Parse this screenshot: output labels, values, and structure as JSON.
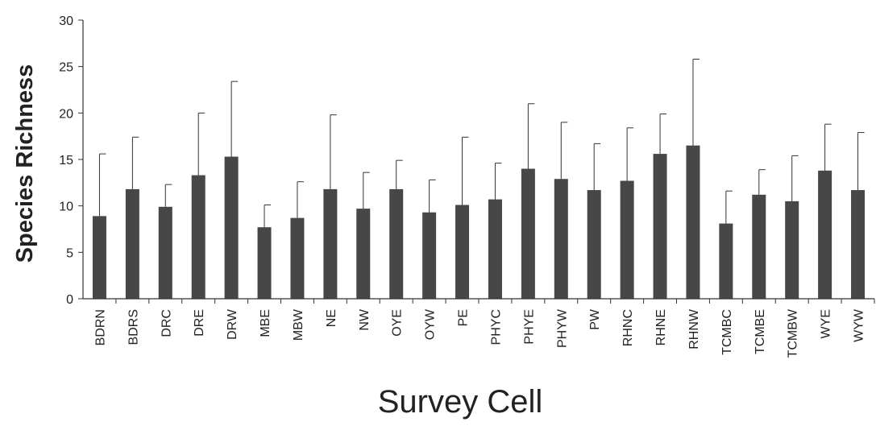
{
  "chart_data": {
    "type": "bar",
    "xlabel": "Survey Cell",
    "ylabel": "Species Richness",
    "ylim": [
      0,
      30
    ],
    "yticks": [
      0,
      5,
      10,
      15,
      20,
      25,
      30
    ],
    "categories": [
      "BDRN",
      "BDRS",
      "DRC",
      "DRE",
      "DRW",
      "MBE",
      "MBW",
      "NE",
      "NW",
      "OYE",
      "OYW",
      "PE",
      "PHYC",
      "PHYE",
      "PHYW",
      "PW",
      "RHNC",
      "RHNE",
      "RHNW",
      "TCMBC",
      "TCMBE",
      "TCMBW",
      "WYE",
      "WYW"
    ],
    "values": [
      8.9,
      11.8,
      9.9,
      13.3,
      15.3,
      7.7,
      8.7,
      11.8,
      9.7,
      11.8,
      9.3,
      10.1,
      10.7,
      14.0,
      12.9,
      11.7,
      12.7,
      15.6,
      16.5,
      8.1,
      11.2,
      10.5,
      13.8,
      11.7
    ],
    "error_upper": [
      15.6,
      17.4,
      12.3,
      20.0,
      23.4,
      10.1,
      12.6,
      19.8,
      13.6,
      14.9,
      12.8,
      17.4,
      14.6,
      21.0,
      19.0,
      16.7,
      18.4,
      19.9,
      25.8,
      11.6,
      13.9,
      15.4,
      18.8,
      17.9
    ],
    "bar_color": "#474747",
    "grid": false,
    "legend": "none"
  }
}
